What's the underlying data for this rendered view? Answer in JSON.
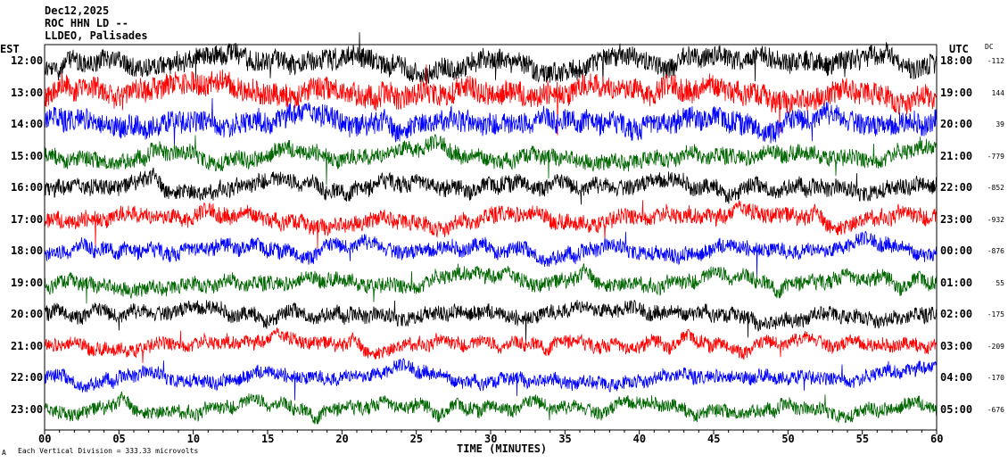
{
  "header": {
    "date": "Dec12,2025",
    "station": "ROC HHN LD --",
    "source": "LLDEO, Palisades"
  },
  "left_axis_title": "EST",
  "right_axis_title": "UTC",
  "dc_title": "DC",
  "footer": {
    "scale_note": "Each Vertical Division =  333.33 microvolts",
    "corner_mark": "A"
  },
  "chart_data": {
    "type": "line",
    "title": "",
    "xlabel": "TIME (MINUTES)",
    "ylabel": "",
    "xlim": [
      0,
      60
    ],
    "x_ticks": [
      "00",
      "05",
      "10",
      "15",
      "20",
      "25",
      "30",
      "35",
      "40",
      "45",
      "50",
      "55",
      "60"
    ],
    "grid": false,
    "legend": "none",
    "row_colors": [
      "#000000",
      "#ff0000",
      "#0000ff",
      "#006600"
    ],
    "rows": [
      {
        "est": "12:00",
        "utc": "18:00",
        "dc": "-112"
      },
      {
        "est": "13:00",
        "utc": "19:00",
        "dc": "144"
      },
      {
        "est": "14:00",
        "utc": "20:00",
        "dc": "39"
      },
      {
        "est": "15:00",
        "utc": "21:00",
        "dc": "-779"
      },
      {
        "est": "16:00",
        "utc": "22:00",
        "dc": "-852"
      },
      {
        "est": "17:00",
        "utc": "23:00",
        "dc": "-932"
      },
      {
        "est": "18:00",
        "utc": "00:00",
        "dc": "-876"
      },
      {
        "est": "19:00",
        "utc": "01:00",
        "dc": "55"
      },
      {
        "est": "20:00",
        "utc": "02:00",
        "dc": "-175"
      },
      {
        "est": "21:00",
        "utc": "03:00",
        "dc": "-209"
      },
      {
        "est": "22:00",
        "utc": "04:00",
        "dc": "-170"
      },
      {
        "est": "23:00",
        "utc": "05:00",
        "dc": "-676"
      }
    ]
  }
}
